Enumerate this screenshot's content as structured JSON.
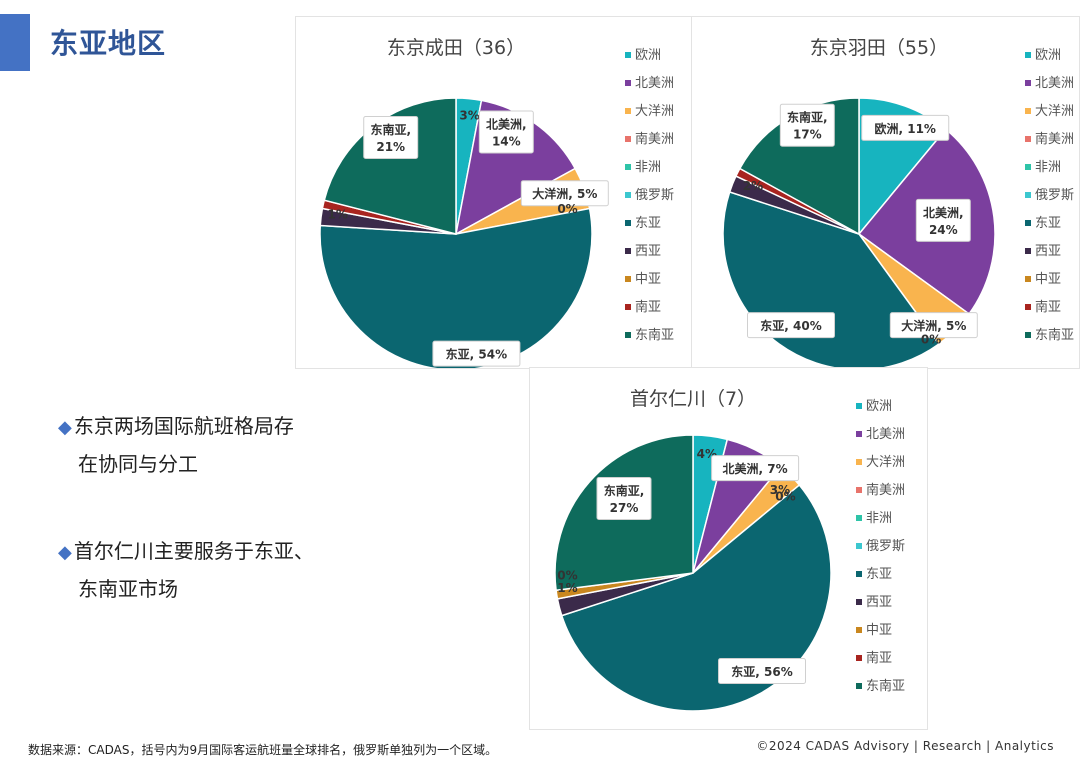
{
  "slide_title": "东亚地区",
  "bullets": [
    {
      "line1": "东京两场国际航班格局存",
      "line2": "在协同与分工"
    },
    {
      "line1": "首尔仁川主要服务于东亚、",
      "line2": "东南亚市场"
    }
  ],
  "footer": {
    "source": "数据来源：CADAS，括号内为9月国际客运航班量全球排名，俄罗斯单独列为一个区域。",
    "copyright": "©2024 CADAS Advisory | Research | Analytics"
  },
  "legend": [
    {
      "name": "欧洲",
      "color": "#17b4bf"
    },
    {
      "name": "北美洲",
      "color": "#7b3f9e"
    },
    {
      "name": "大洋洲",
      "color": "#f9b44e"
    },
    {
      "name": "南美洲",
      "color": "#e8736b"
    },
    {
      "name": "非洲",
      "color": "#2ec4a8"
    },
    {
      "name": "俄罗斯",
      "color": "#3cc7cf"
    },
    {
      "name": "东亚",
      "color": "#0b6670"
    },
    {
      "name": "西亚",
      "color": "#3b2a4a"
    },
    {
      "name": "中亚",
      "color": "#c9871f"
    },
    {
      "name": "南亚",
      "color": "#a8241f"
    },
    {
      "name": "东南亚",
      "color": "#0e6b5c"
    }
  ],
  "chart_data": [
    {
      "type": "pie",
      "title": "东京成田（36）",
      "categories": [
        "欧洲",
        "北美洲",
        "大洋洲",
        "南美洲",
        "非洲",
        "俄罗斯",
        "东亚",
        "西亚",
        "中亚",
        "南亚",
        "东南亚"
      ],
      "values": [
        3,
        14,
        5,
        0,
        0,
        0,
        54,
        2,
        0,
        1,
        21
      ],
      "labels": [
        {
          "text": "3%",
          "lx": 0.1,
          "ly": -0.88
        },
        {
          "text": "北美洲,\n14%",
          "lx": 0.37,
          "ly": -0.75
        },
        {
          "text": "大洋洲, 5%",
          "lx": 0.8,
          "ly": -0.3
        },
        {
          "text": "0%",
          "lx": 0.82,
          "ly": -0.19
        },
        {
          "text": "东亚, 54%",
          "lx": 0.15,
          "ly": 0.88
        },
        {
          "text": "1%",
          "lx": -0.87,
          "ly": -0.15
        },
        {
          "text": "东南亚,\n21%",
          "lx": -0.48,
          "ly": -0.71
        }
      ]
    },
    {
      "type": "pie",
      "title": "东京羽田（55）",
      "categories": [
        "欧洲",
        "北美洲",
        "大洋洲",
        "南美洲",
        "非洲",
        "俄罗斯",
        "东亚",
        "西亚",
        "中亚",
        "南亚",
        "东南亚"
      ],
      "values": [
        11,
        24,
        5,
        0,
        0,
        0,
        40,
        2,
        0,
        1,
        17
      ],
      "labels": [
        {
          "text": "欧洲, 11%",
          "lx": 0.34,
          "ly": -0.78
        },
        {
          "text": "北美洲,\n24%",
          "lx": 0.62,
          "ly": -0.1
        },
        {
          "text": "大洋洲, 5%",
          "lx": 0.55,
          "ly": 0.67
        },
        {
          "text": "0%",
          "lx": 0.53,
          "ly": 0.77
        },
        {
          "text": "东亚, 40%",
          "lx": -0.5,
          "ly": 0.67
        },
        {
          "text": "2%",
          "lx": -0.78,
          "ly": -0.36
        },
        {
          "text": "东南亚,\n17%",
          "lx": -0.38,
          "ly": -0.8
        }
      ]
    },
    {
      "type": "pie",
      "title": "首尔仁川（7）",
      "categories": [
        "欧洲",
        "北美洲",
        "大洋洲",
        "南美洲",
        "非洲",
        "俄罗斯",
        "东亚",
        "西亚",
        "中亚",
        "南亚",
        "东南亚"
      ],
      "values": [
        4,
        7,
        3,
        0,
        0,
        0,
        56,
        2,
        1,
        0,
        27
      ],
      "labels": [
        {
          "text": "4%",
          "lx": 0.1,
          "ly": -0.87
        },
        {
          "text": "北美洲, 7%",
          "lx": 0.45,
          "ly": -0.76
        },
        {
          "text": "3%",
          "lx": 0.63,
          "ly": -0.61
        },
        {
          "text": "0%",
          "lx": 0.67,
          "ly": -0.56
        },
        {
          "text": "东亚, 56%",
          "lx": 0.5,
          "ly": 0.71
        },
        {
          "text": "1%",
          "lx": -0.91,
          "ly": 0.1
        },
        {
          "text": "0%",
          "lx": -0.91,
          "ly": 0.01
        },
        {
          "text": "东南亚,\n27%",
          "lx": -0.5,
          "ly": -0.54
        }
      ]
    }
  ]
}
